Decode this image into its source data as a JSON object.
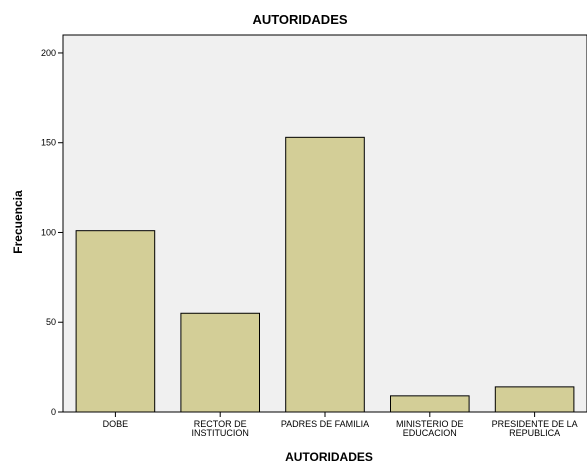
{
  "chart_data": {
    "type": "bar",
    "title": "AUTORIDADES",
    "xlabel": "AUTORIDADES",
    "ylabel": "Frecuencia",
    "categories": [
      [
        "DOBE"
      ],
      [
        "RECTOR DE",
        "INSTITUCION"
      ],
      [
        "PADRES DE FAMILIA"
      ],
      [
        "MINISTERIO DE",
        "EDUCACION"
      ],
      [
        "PRESIDENTE DE LA",
        "REPUBLICA"
      ]
    ],
    "values": [
      101,
      55,
      153,
      9,
      14
    ],
    "ylim": [
      0,
      210
    ],
    "yticks": [
      "0",
      "50",
      "100",
      "150",
      "200"
    ],
    "grid": false,
    "colors": {
      "plot_background": "#F0F0F0",
      "bar_fill": "#D3CE97",
      "bar_stroke": "#000000"
    }
  }
}
